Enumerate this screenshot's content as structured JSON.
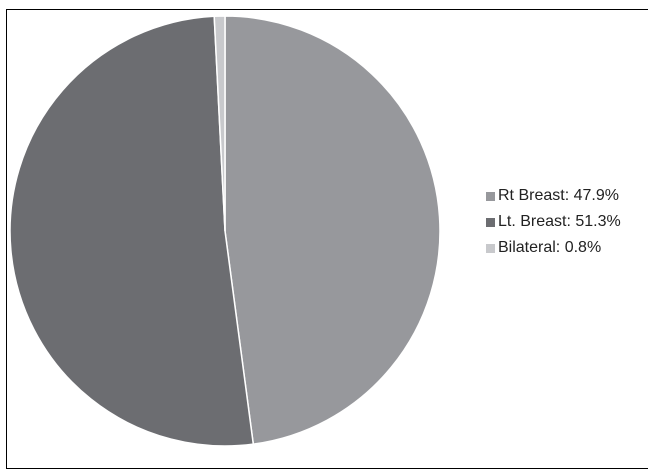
{
  "chart_data": {
    "type": "pie",
    "slices": [
      {
        "label": "Rt Breast: 47.9%",
        "name": "Rt Breast",
        "value": 47.9,
        "color": "#97989c"
      },
      {
        "label": "Lt. Breast: 51.3%",
        "name": "Lt. Breast",
        "value": 51.3,
        "color": "#6c6d71"
      },
      {
        "label": "Bilateral: 0.8%",
        "name": "Bilateral",
        "value": 0.8,
        "color": "#c8c9cc"
      }
    ],
    "start_angle_deg": 0,
    "direction": "clockwise",
    "legend_position": "right"
  }
}
